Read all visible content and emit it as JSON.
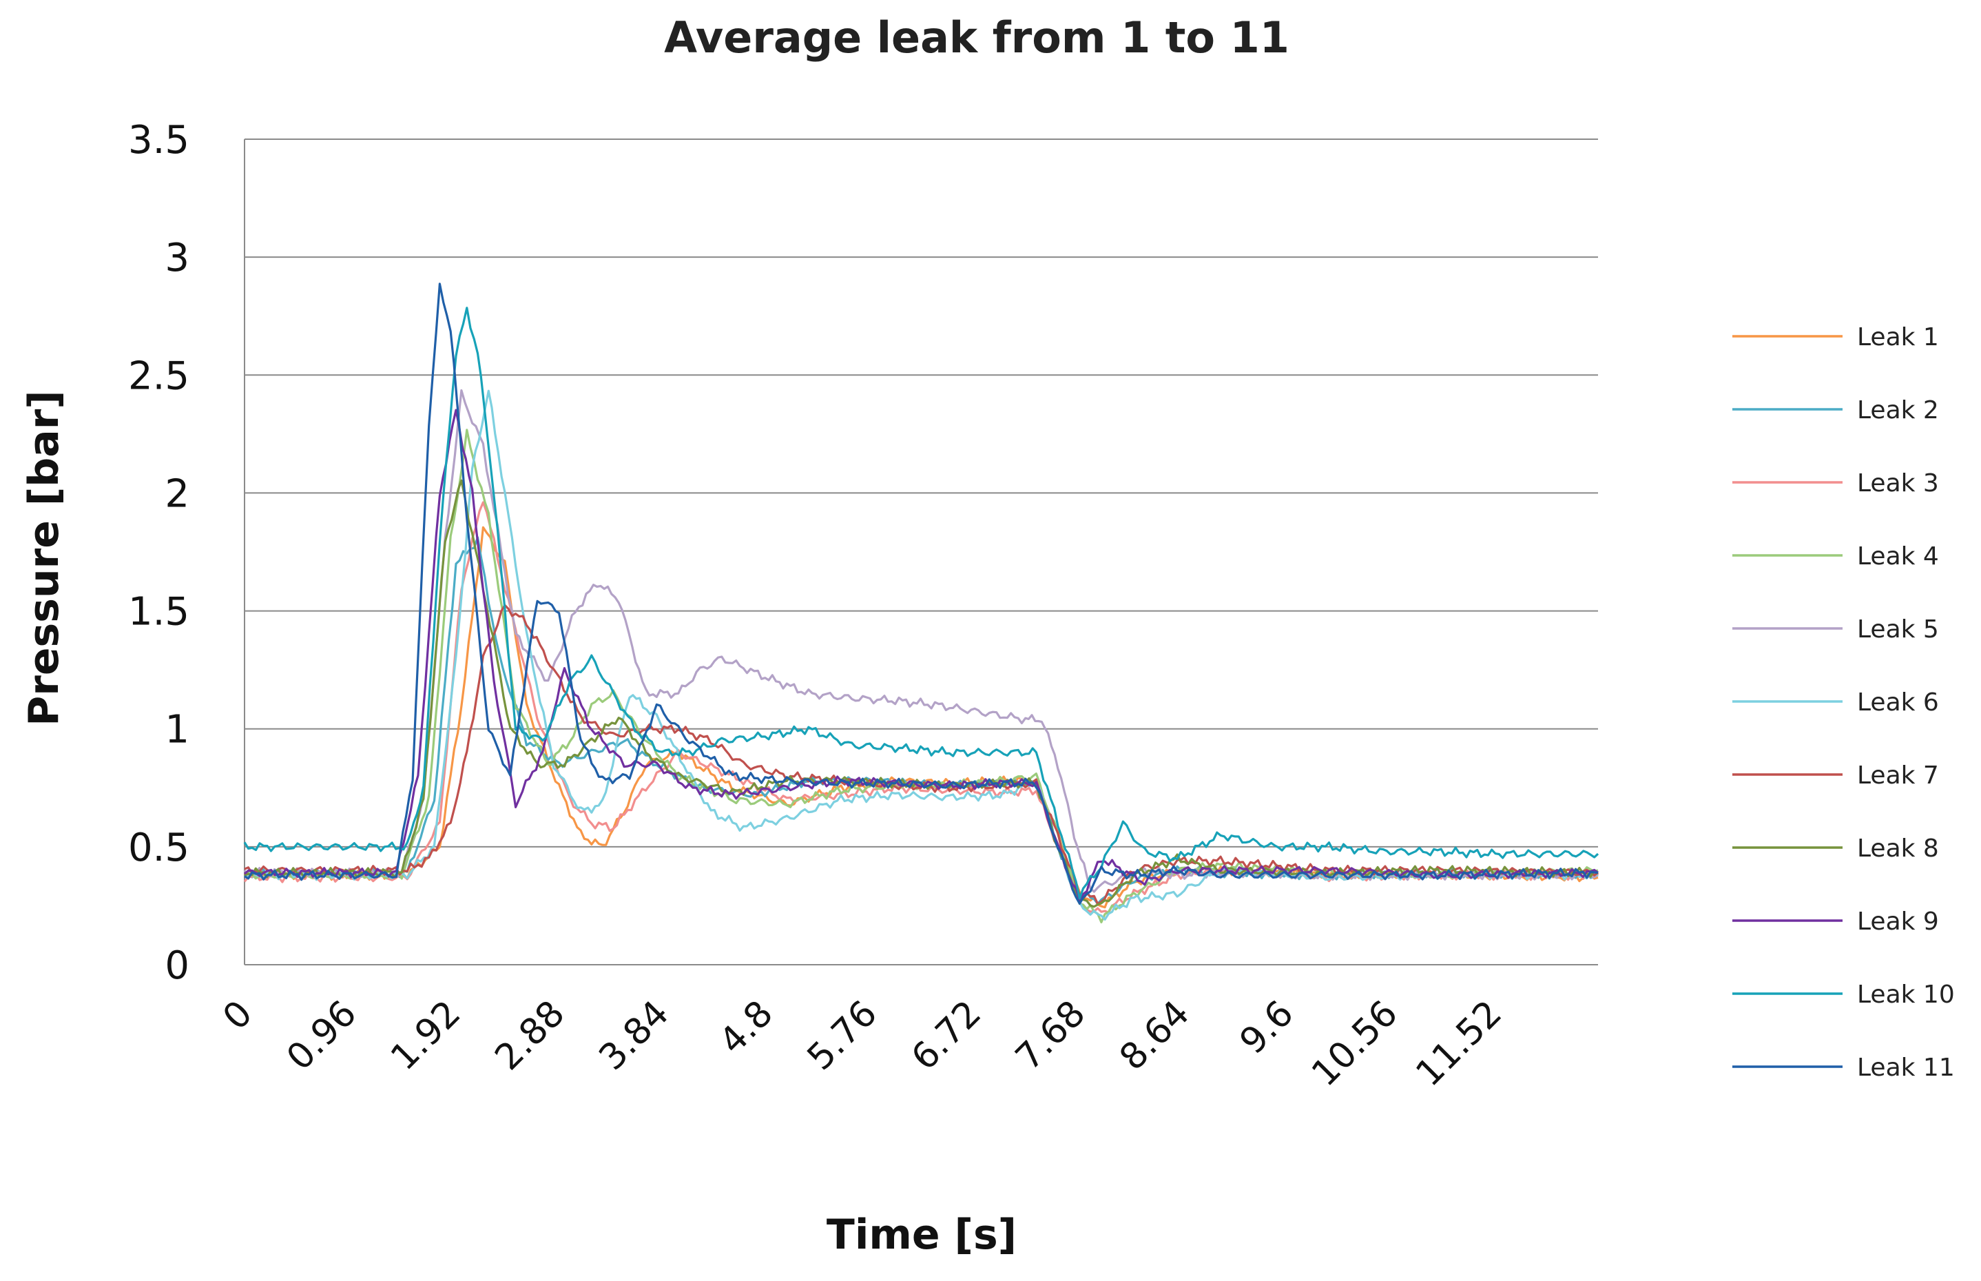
{
  "chart_data": {
    "type": "line",
    "title": "Average leak from 1 to 11",
    "xlabel": "Time [s]",
    "ylabel": "Pressure [bar]",
    "xlim": [
      0,
      12.48
    ],
    "ylim": [
      0,
      3.5
    ],
    "x_ticks": [
      "0",
      "0.96",
      "1.92",
      "2.88",
      "3.84",
      "4.8",
      "5.76",
      "6.72",
      "7.68",
      "8.64",
      "9.6",
      "10.56",
      "11.52"
    ],
    "x_tick_values": [
      0,
      0.96,
      1.92,
      2.88,
      3.84,
      4.8,
      5.76,
      6.72,
      7.68,
      8.64,
      9.6,
      10.56,
      11.52
    ],
    "y_ticks": [
      "0",
      "0.5",
      "1",
      "1.5",
      "2",
      "2.5",
      "3",
      "3.5"
    ],
    "y_tick_values": [
      0,
      0.5,
      1,
      1.5,
      2,
      2.5,
      3,
      3.5
    ],
    "grid": "horizontal",
    "legend_position": "right",
    "series": [
      {
        "name": "Leak 1",
        "color": "#F79646",
        "x": [
          0,
          1.5,
          1.8,
          2.0,
          2.2,
          2.4,
          2.6,
          2.9,
          3.1,
          3.3,
          3.5,
          3.7,
          4.0,
          4.5,
          5.0,
          5.5,
          6.0,
          6.5,
          7.0,
          7.3,
          7.5,
          7.7,
          7.9,
          8.2,
          8.6,
          9.0,
          10.0,
          11.0,
          12.48
        ],
        "y": [
          0.38,
          0.38,
          0.5,
          1.1,
          1.85,
          1.7,
          1.1,
          0.75,
          0.55,
          0.5,
          0.65,
          0.85,
          0.9,
          0.75,
          0.68,
          0.75,
          0.78,
          0.77,
          0.78,
          0.78,
          0.55,
          0.3,
          0.25,
          0.35,
          0.4,
          0.4,
          0.38,
          0.38,
          0.37
        ]
      },
      {
        "name": "Leak 2",
        "color": "#4BACC6",
        "x": [
          0,
          1.5,
          1.75,
          1.95,
          2.15,
          2.35,
          2.6,
          2.9,
          3.2,
          3.5,
          3.8,
          4.2,
          4.7,
          5.2,
          5.8,
          6.4,
          7.0,
          7.3,
          7.5,
          7.7,
          7.9,
          8.2,
          8.6,
          9.0,
          10.0,
          11.0,
          12.48
        ],
        "y": [
          0.39,
          0.39,
          0.7,
          1.7,
          1.8,
          1.3,
          0.95,
          0.85,
          0.9,
          0.95,
          0.85,
          0.75,
          0.72,
          0.78,
          0.78,
          0.76,
          0.77,
          0.77,
          0.5,
          0.3,
          0.27,
          0.36,
          0.4,
          0.39,
          0.38,
          0.39,
          0.38
        ]
      },
      {
        "name": "Leak 3",
        "color": "#F28E8E",
        "x": [
          0,
          1.5,
          1.8,
          2.0,
          2.2,
          2.4,
          2.7,
          3.0,
          3.2,
          3.4,
          3.7,
          4.0,
          4.5,
          5.0,
          5.5,
          6.0,
          6.5,
          7.0,
          7.3,
          7.5,
          7.7,
          7.9,
          8.2,
          8.6,
          9.0,
          10.0,
          11.0,
          12.48
        ],
        "y": [
          0.37,
          0.37,
          0.6,
          1.6,
          1.98,
          1.6,
          1.05,
          0.7,
          0.6,
          0.58,
          0.75,
          0.9,
          0.8,
          0.7,
          0.72,
          0.75,
          0.74,
          0.73,
          0.74,
          0.5,
          0.25,
          0.22,
          0.3,
          0.38,
          0.4,
          0.37,
          0.38,
          0.38
        ]
      },
      {
        "name": "Leak 4",
        "color": "#9BCB7B",
        "x": [
          0,
          1.45,
          1.7,
          1.9,
          2.05,
          2.25,
          2.5,
          2.8,
          3.0,
          3.2,
          3.4,
          3.7,
          4.0,
          4.5,
          5.0,
          5.5,
          6.0,
          6.5,
          7.0,
          7.3,
          7.5,
          7.7,
          7.9,
          8.2,
          8.6,
          9.0,
          10.0,
          11.0,
          12.48
        ],
        "y": [
          0.38,
          0.38,
          0.7,
          1.8,
          2.25,
          1.9,
          1.1,
          0.85,
          0.95,
          1.1,
          1.15,
          0.95,
          0.8,
          0.7,
          0.68,
          0.74,
          0.76,
          0.76,
          0.78,
          0.8,
          0.55,
          0.27,
          0.2,
          0.3,
          0.4,
          0.42,
          0.39,
          0.38,
          0.4
        ]
      },
      {
        "name": "Leak 5",
        "color": "#B3A2C7",
        "x": [
          0,
          1.45,
          1.65,
          1.85,
          2.0,
          2.2,
          2.5,
          2.8,
          3.05,
          3.25,
          3.45,
          3.7,
          4.0,
          4.2,
          4.4,
          4.8,
          5.2,
          5.6,
          6.0,
          6.4,
          6.8,
          7.2,
          7.35,
          7.5,
          7.65,
          7.8,
          8.0,
          8.3,
          8.6,
          9.0,
          10.0,
          11.0,
          12.48
        ],
        "y": [
          0.39,
          0.39,
          0.7,
          1.8,
          2.42,
          2.2,
          1.4,
          1.2,
          1.5,
          1.62,
          1.55,
          1.15,
          1.15,
          1.25,
          1.3,
          1.22,
          1.15,
          1.13,
          1.12,
          1.1,
          1.07,
          1.04,
          1.04,
          0.85,
          0.55,
          0.32,
          0.35,
          0.4,
          0.38,
          0.39,
          0.38,
          0.38,
          0.38
        ]
      },
      {
        "name": "Leak 6",
        "color": "#7DD0E0",
        "x": [
          0,
          1.5,
          1.75,
          1.95,
          2.1,
          2.25,
          2.4,
          2.6,
          2.85,
          3.1,
          3.3,
          3.55,
          3.8,
          4.05,
          4.3,
          4.6,
          5.0,
          5.5,
          6.0,
          6.5,
          7.0,
          7.3,
          7.5,
          7.7,
          7.9,
          8.2,
          8.6,
          9.0,
          10.0,
          11.0,
          12.48
        ],
        "y": [
          0.38,
          0.38,
          0.5,
          1.3,
          2.1,
          2.43,
          2.0,
          1.4,
          0.85,
          0.65,
          0.68,
          1.15,
          1.05,
          0.85,
          0.65,
          0.58,
          0.62,
          0.7,
          0.72,
          0.71,
          0.72,
          0.78,
          0.5,
          0.25,
          0.2,
          0.28,
          0.3,
          0.4,
          0.37,
          0.38,
          0.38
        ]
      },
      {
        "name": "Leak 7",
        "color": "#C0504D",
        "x": [
          0,
          1.5,
          1.7,
          1.9,
          2.05,
          2.2,
          2.4,
          2.6,
          2.85,
          3.1,
          3.4,
          3.7,
          4.0,
          4.3,
          4.6,
          5.0,
          5.5,
          6.0,
          6.5,
          7.0,
          7.3,
          7.5,
          7.7,
          7.9,
          8.2,
          8.6,
          9.0,
          10.0,
          11.0,
          12.48
        ],
        "y": [
          0.4,
          0.4,
          0.45,
          0.6,
          0.9,
          1.3,
          1.52,
          1.45,
          1.25,
          1.05,
          0.97,
          1.0,
          1.0,
          0.95,
          0.85,
          0.8,
          0.78,
          0.76,
          0.75,
          0.76,
          0.77,
          0.55,
          0.3,
          0.27,
          0.4,
          0.44,
          0.44,
          0.4,
          0.4,
          0.39
        ]
      },
      {
        "name": "Leak 8",
        "color": "#77933C",
        "x": [
          0,
          1.45,
          1.65,
          1.85,
          2.0,
          2.2,
          2.45,
          2.7,
          2.95,
          3.2,
          3.45,
          3.7,
          4.0,
          4.5,
          5.0,
          5.5,
          6.0,
          6.5,
          7.0,
          7.3,
          7.5,
          7.7,
          7.9,
          8.2,
          8.6,
          9.0,
          10.0,
          11.0,
          12.48
        ],
        "y": [
          0.39,
          0.39,
          0.7,
          1.8,
          2.05,
          1.6,
          1.0,
          0.85,
          0.85,
          0.95,
          1.05,
          0.9,
          0.8,
          0.73,
          0.78,
          0.78,
          0.77,
          0.76,
          0.77,
          0.77,
          0.5,
          0.27,
          0.25,
          0.38,
          0.45,
          0.4,
          0.39,
          0.4,
          0.39
        ]
      },
      {
        "name": "Leak 9",
        "color": "#7030A0",
        "x": [
          0,
          1.4,
          1.6,
          1.8,
          1.95,
          2.1,
          2.3,
          2.5,
          2.75,
          2.95,
          3.2,
          3.5,
          3.8,
          4.1,
          4.5,
          5.0,
          5.5,
          6.0,
          6.5,
          7.0,
          7.3,
          7.5,
          7.7,
          7.9,
          8.1,
          8.3,
          8.6,
          9.0,
          10.0,
          11.0,
          12.48
        ],
        "y": [
          0.39,
          0.39,
          0.8,
          2.0,
          2.35,
          2.0,
          1.2,
          0.68,
          0.9,
          1.25,
          1.0,
          0.85,
          0.85,
          0.75,
          0.72,
          0.75,
          0.78,
          0.77,
          0.76,
          0.77,
          0.77,
          0.5,
          0.27,
          0.45,
          0.4,
          0.35,
          0.4,
          0.4,
          0.4,
          0.38,
          0.39
        ]
      },
      {
        "name": "Leak 10",
        "color": "#17A2B8",
        "x": [
          0,
          1.5,
          1.65,
          1.8,
          1.95,
          2.05,
          2.15,
          2.3,
          2.5,
          2.75,
          3.0,
          3.2,
          3.4,
          3.6,
          3.85,
          4.1,
          4.4,
          4.8,
          5.2,
          5.6,
          6.0,
          6.5,
          7.0,
          7.3,
          7.5,
          7.7,
          7.9,
          8.1,
          8.3,
          8.6,
          9.0,
          9.5,
          10.0,
          10.5,
          11.0,
          11.5,
          12.48
        ],
        "y": [
          0.5,
          0.5,
          0.75,
          1.8,
          2.6,
          2.77,
          2.6,
          2.0,
          1.0,
          0.95,
          1.2,
          1.3,
          1.15,
          1.0,
          0.9,
          0.9,
          0.95,
          0.97,
          1.0,
          0.93,
          0.92,
          0.9,
          0.9,
          0.9,
          0.6,
          0.3,
          0.42,
          0.6,
          0.48,
          0.45,
          0.55,
          0.5,
          0.5,
          0.48,
          0.48,
          0.47,
          0.47
        ]
      },
      {
        "name": "Leak 11",
        "color": "#1F5FA8",
        "x": [
          0,
          1.4,
          1.55,
          1.7,
          1.8,
          1.9,
          2.05,
          2.25,
          2.45,
          2.7,
          2.9,
          3.1,
          3.3,
          3.55,
          3.8,
          4.1,
          4.5,
          5.0,
          5.5,
          6.0,
          6.5,
          7.0,
          7.3,
          7.5,
          7.7,
          7.9,
          8.2,
          8.6,
          9.0,
          10.0,
          11.0,
          12.48
        ],
        "y": [
          0.38,
          0.38,
          0.8,
          2.3,
          2.87,
          2.7,
          1.9,
          1.0,
          0.8,
          1.55,
          1.5,
          0.95,
          0.78,
          0.8,
          1.1,
          0.95,
          0.8,
          0.78,
          0.77,
          0.77,
          0.76,
          0.77,
          0.77,
          0.5,
          0.25,
          0.4,
          0.38,
          0.4,
          0.38,
          0.38,
          0.38,
          0.39
        ]
      }
    ]
  }
}
